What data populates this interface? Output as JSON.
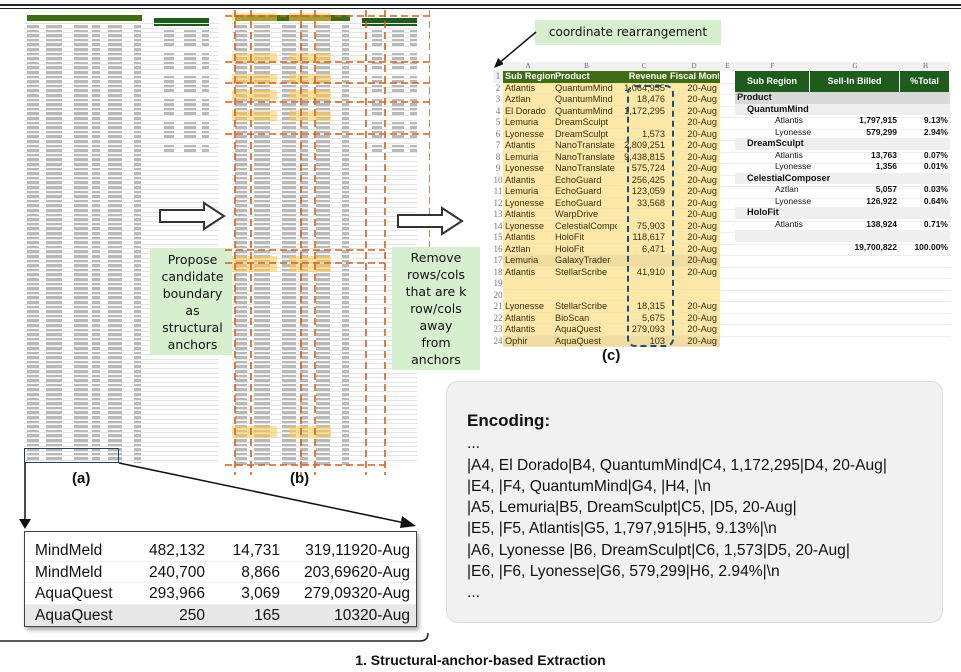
{
  "labels": {
    "a": "(a)",
    "b": "(b)",
    "c": "(c)"
  },
  "steps": {
    "propose": "Propose\ncandidate\nboundary\nas\nstructural\nanchors",
    "remove": "Remove\nrows/cols\nthat are k\nrow/cols\naway\nfrom\nanchors",
    "rearrange": "coordinate rearrangement"
  },
  "colors": {
    "header_green": "#3f6b14",
    "pivot_green": "#1e5c1e",
    "highlight": "#fde8a8",
    "anchor_line": "#d2601e",
    "box_green": "#d6efce",
    "dashed_blue": "#1f4e79"
  },
  "sheet_c": {
    "col_letters": [
      "A",
      "B",
      "C",
      "D",
      "E",
      "F",
      "G",
      "H"
    ],
    "headers": [
      "Sub Region",
      "Product",
      "Revenue",
      "Fiscal Month"
    ],
    "rows": [
      {
        "n": "1"
      },
      {
        "n": "2",
        "a": "Atlantis",
        "b": "QuantumMind",
        "c": "1,064,955",
        "d": "20-Aug"
      },
      {
        "n": "3",
        "a": "Aztlan",
        "b": "QuantumMind",
        "c": "18,476",
        "d": "20-Aug"
      },
      {
        "n": "4",
        "a": "El Dorado",
        "b": "QuantumMind",
        "c": "1,172,295",
        "d": "20-Aug"
      },
      {
        "n": "5",
        "a": "Lemuria",
        "b": "DreamSculpt",
        "c": "",
        "d": "20-Aug"
      },
      {
        "n": "6",
        "a": "Lyonesse",
        "b": "DreamSculpt",
        "c": "1,573",
        "d": "20-Aug"
      },
      {
        "n": "7",
        "a": "Atlantis",
        "b": "NanoTranslate",
        "c": "2,809,251",
        "d": "20-Aug"
      },
      {
        "n": "8",
        "a": "Lemuria",
        "b": "NanoTranslate",
        "c": "9,438,815",
        "d": "20-Aug"
      },
      {
        "n": "9",
        "a": "Lyonesse",
        "b": "NanoTranslate",
        "c": "575,724",
        "d": "20-Aug"
      },
      {
        "n": "10",
        "a": "Atlantis",
        "b": "EchoGuard",
        "c": "256,425",
        "d": "20-Aug"
      },
      {
        "n": "11",
        "a": "Lemuria",
        "b": "EchoGuard",
        "c": "123,059",
        "d": "20-Aug"
      },
      {
        "n": "12",
        "a": "Lyonesse",
        "b": "EchoGuard",
        "c": "33,568",
        "d": "20-Aug"
      },
      {
        "n": "13",
        "a": "Atlantis",
        "b": "WarpDrive",
        "c": "",
        "d": "20-Aug"
      },
      {
        "n": "14",
        "a": "Lyonesse",
        "b": "CelestialComposer",
        "c": "75,903",
        "d": "20-Aug"
      },
      {
        "n": "15",
        "a": "Atlantis",
        "b": "HoloFit",
        "c": "118,617",
        "d": "20-Aug"
      },
      {
        "n": "16",
        "a": "Aztlan",
        "b": "HoloFit",
        "c": "6,471",
        "d": "20-Aug"
      },
      {
        "n": "17",
        "a": "Lemuria",
        "b": "GalaxyTrader",
        "c": "",
        "d": "20-Aug"
      },
      {
        "n": "18",
        "a": "Atlantis",
        "b": "StellarScribe",
        "c": "41,910",
        "d": "20-Aug"
      },
      {
        "n": "19"
      },
      {
        "n": "20"
      },
      {
        "n": "21",
        "a": "Lyonesse",
        "b": "StellarScribe",
        "c": "18,315",
        "d": "20-Aug"
      },
      {
        "n": "22",
        "a": "Atlantis",
        "b": "BioScan",
        "c": "5,675",
        "d": "20-Aug"
      },
      {
        "n": "23",
        "a": "Atlantis",
        "b": "AquaQuest",
        "c": "279,093",
        "d": "20-Aug"
      },
      {
        "n": "24",
        "a": "Ophir",
        "b": "AquaQuest",
        "c": "103",
        "d": "20-Aug"
      }
    ],
    "pivot": {
      "headers": [
        "Sub Region",
        "Sell-In Billed Revenue",
        "%Total"
      ],
      "rows": [
        {
          "k": "root",
          "label": "Product"
        },
        {
          "k": "group",
          "label": "QuantumMind"
        },
        {
          "k": "item",
          "label": "Atlantis",
          "value": "1,797,915",
          "pct": "9.13%"
        },
        {
          "k": "item",
          "label": "Lyonesse",
          "value": "579,299",
          "pct": "2.94%"
        },
        {
          "k": "group",
          "label": "DreamSculpt"
        },
        {
          "k": "item",
          "label": "Atlantis",
          "value": "13,763",
          "pct": "0.07%"
        },
        {
          "k": "item",
          "label": "Lyonesse",
          "value": "1,356",
          "pct": "0.01%"
        },
        {
          "k": "group",
          "label": "CelestialComposer"
        },
        {
          "k": "item",
          "label": "Aztlan",
          "value": "5,057",
          "pct": "0.03%"
        },
        {
          "k": "item",
          "label": "Lyonesse",
          "value": "126,922",
          "pct": "0.64%"
        },
        {
          "k": "group",
          "label": "HoloFit"
        },
        {
          "k": "item",
          "label": "Atlantis",
          "value": "138,924",
          "pct": "0.71%"
        },
        {
          "k": "blank"
        },
        {
          "k": "total",
          "label": "",
          "value": "19,700,822",
          "pct": "100.00%"
        }
      ]
    }
  },
  "encoding": {
    "title": "Encoding:",
    "lines": [
      "...",
      "|A4, El Dorado|B4, QuantumMind|C4, 1,172,295|D4, 20-Aug|",
      "|E4,  |F4, QuantumMind|G4,  |H4,  |\\n",
      "|A5, Lemuria|B5, DreamSculpt|C5,  |D5, 20-Aug|",
      "|E5,  |F5, Atlantis|G5, 1,797,915|H5, 9.13%|\\n",
      "|A6, Lyonesse |B6, DreamSculpt|C6, 1,573|D5, 20-Aug|",
      "|E6,  |F6, Lyonesse|G6, 579,299|H6, 2.94%|\\n",
      "..."
    ]
  },
  "zoom_table": {
    "rows": [
      [
        "MindMeld",
        "482,132",
        "14,731",
        "319,119",
        "20-Aug"
      ],
      [
        "MindMeld",
        "240,700",
        "8,866",
        "203,696",
        "20-Aug"
      ],
      [
        "AquaQuest",
        "293,966",
        "3,069",
        "279,093",
        "20-Aug"
      ],
      [
        "AquaQuest",
        "250",
        "165",
        "103",
        "20-Aug"
      ]
    ]
  },
  "caption": "1. Structural-anchor-based Extraction"
}
